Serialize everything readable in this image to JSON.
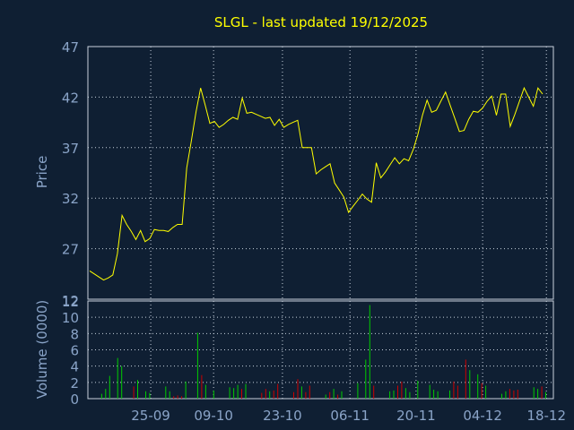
{
  "chart_data": [
    {
      "type": "line",
      "title": "SLGL - last updated 19/12/2025",
      "ylabel": "Price",
      "yticks": [
        27,
        32,
        37,
        42,
        47
      ],
      "ylim": [
        22,
        47
      ],
      "line_color": "#ffff00",
      "values": [
        24.8,
        24.5,
        24.2,
        23.9,
        24.1,
        24.4,
        26.5,
        30.3,
        29.4,
        28.7,
        27.9,
        28.8,
        27.7,
        28.0,
        28.9,
        28.8,
        28.8,
        28.7,
        29.1,
        29.4,
        29.4,
        35.0,
        37.7,
        40.5,
        42.9,
        41.2,
        39.4,
        39.6,
        39.0,
        39.3,
        39.7,
        40.0,
        39.8,
        41.9,
        40.4,
        40.5,
        40.3,
        40.1,
        39.9,
        40.0,
        39.2,
        39.8,
        39.0,
        39.3,
        39.5,
        39.7,
        37.0,
        37.0,
        37.0,
        34.4,
        34.8,
        35.1,
        35.4,
        33.5,
        32.8,
        32.1,
        30.6,
        31.2,
        31.8,
        32.4,
        31.9,
        31.6,
        35.5,
        34.0,
        34.6,
        35.3,
        36.0,
        35.4,
        35.9,
        35.7,
        36.8,
        38.3,
        40.2,
        41.7,
        40.5,
        40.7,
        41.6,
        42.5,
        41.2,
        39.9,
        38.6,
        38.7,
        39.8,
        40.6,
        40.5,
        40.9,
        41.6,
        42.1,
        40.2,
        42.3,
        42.3,
        39.1,
        40.3,
        41.6,
        42.9,
        42.0,
        41.1,
        42.9,
        42.3
      ]
    },
    {
      "type": "bar",
      "ylabel": "Volume (0000)",
      "yticks": [
        0,
        2,
        4,
        6,
        8,
        10,
        12
      ],
      "ylim": [
        0,
        12
      ],
      "up_color": "#00cc00",
      "down_color": "#cc0000",
      "values": [
        0,
        0,
        0,
        0.6,
        1.2,
        2.8,
        0,
        5.0,
        4.0,
        0,
        0,
        1.5,
        2.3,
        0,
        0.9,
        0.7,
        0,
        0,
        0,
        1.5,
        0.9,
        0.3,
        0.4,
        0.3,
        2.1,
        0,
        0,
        8.1,
        2.9,
        1.7,
        0,
        1.0,
        0,
        0,
        0,
        1.4,
        1.3,
        1.7,
        1.2,
        1.8,
        0,
        0,
        0,
        0.7,
        1.2,
        0.9,
        1.0,
        1.8,
        0,
        0,
        0,
        0.8,
        2.4,
        1.5,
        0.8,
        1.6,
        0,
        0,
        0,
        0.5,
        0.8,
        1.2,
        0.5,
        0.9,
        0,
        0,
        0,
        1.9,
        0,
        4.8,
        11.5,
        1.6,
        0,
        0,
        0,
        0.9,
        1.0,
        1.6,
        2.1,
        1.3,
        0.8,
        0,
        2.2,
        0,
        0,
        1.7,
        1.1,
        0.9,
        0,
        0,
        1.0,
        2.1,
        1.6,
        0,
        4.8,
        3.5,
        0,
        3.0,
        1.9,
        1.6,
        0,
        0,
        0,
        0.6,
        0.9,
        1.2,
        1.0,
        1.1,
        0,
        0,
        0,
        1.4,
        1.2,
        1.5,
        0.8,
        0
      ],
      "up": [
        0,
        0,
        0,
        1,
        1,
        1,
        0,
        1,
        1,
        0,
        0,
        0,
        1,
        0,
        1,
        1,
        0,
        0,
        0,
        1,
        1,
        0,
        0,
        0,
        1,
        0,
        0,
        1,
        0,
        1,
        0,
        1,
        0,
        0,
        0,
        1,
        1,
        1,
        0,
        1,
        0,
        0,
        0,
        0,
        0,
        1,
        0,
        0,
        0,
        0,
        0,
        0,
        0,
        1,
        0,
        0,
        0,
        0,
        0,
        1,
        0,
        1,
        0,
        1,
        0,
        0,
        0,
        1,
        0,
        1,
        1,
        0,
        0,
        0,
        0,
        1,
        1,
        0,
        0,
        1,
        1,
        0,
        1,
        0,
        0,
        1,
        1,
        1,
        0,
        0,
        1,
        0,
        0,
        0,
        0,
        1,
        0,
        1,
        0,
        1,
        0,
        0,
        0,
        1,
        1,
        0,
        0,
        0,
        0,
        0,
        0,
        1,
        1,
        0,
        1,
        0
      ]
    }
  ],
  "x_axis": {
    "ticks": [
      {
        "label": "25-09",
        "frac": 0.135
      },
      {
        "label": "09-10",
        "frac": 0.27
      },
      {
        "label": "23-10",
        "frac": 0.418
      },
      {
        "label": "06-11",
        "frac": 0.563
      },
      {
        "label": "20-11",
        "frac": 0.705
      },
      {
        "label": "04-12",
        "frac": 0.848
      },
      {
        "label": "18-12",
        "frac": 0.985
      }
    ]
  },
  "price_axis_bottom_label": "12"
}
